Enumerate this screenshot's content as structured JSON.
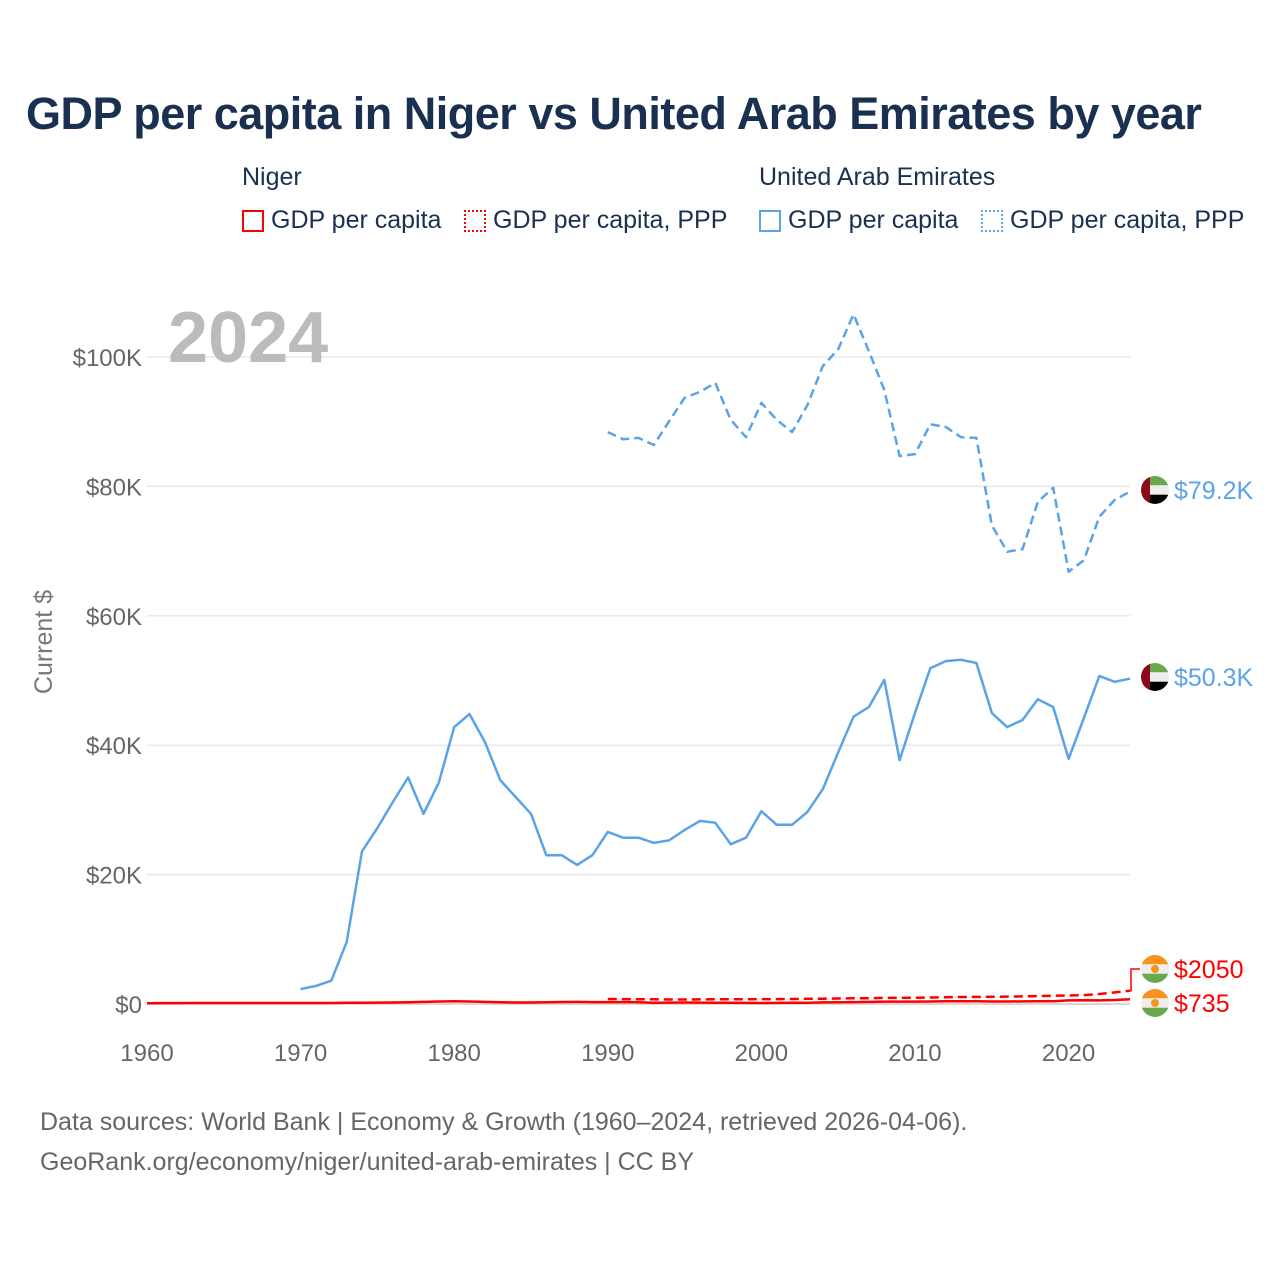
{
  "title": "GDP per capita in Niger vs United Arab Emirates by year",
  "legend": {
    "groups": [
      {
        "name": "Niger",
        "color": "#ff0000",
        "items": [
          "GDP per capita",
          "GDP per capita, PPP"
        ]
      },
      {
        "name": "United Arab Emirates",
        "color": "#5ba3e8",
        "items": [
          "GDP per capita",
          "GDP per capita, PPP"
        ]
      }
    ]
  },
  "footer": {
    "line1": "Data sources: World Bank | Economy & Growth (1960–2024, retrieved 2026-04-06).",
    "line2": "GeoRank.org/economy/niger/united-arab-emirates | CC BY"
  },
  "chart_data": {
    "type": "line",
    "title": "GDP per capita in Niger vs United Arab Emirates by year",
    "year_label": "2024",
    "ylabel": "Current $",
    "xlim": [
      1960,
      2024
    ],
    "ylim": [
      0,
      110000
    ],
    "x_ticks": [
      1960,
      1970,
      1980,
      1990,
      2000,
      2010,
      2020
    ],
    "y_ticks": [
      {
        "v": 0,
        "label": "$0"
      },
      {
        "v": 20000,
        "label": "$20K"
      },
      {
        "v": 40000,
        "label": "$40K"
      },
      {
        "v": 60000,
        "label": "$60K"
      },
      {
        "v": 80000,
        "label": "$80K"
      },
      {
        "v": 100000,
        "label": "$100K"
      }
    ],
    "series": [
      {
        "name": "United Arab Emirates GDP per capita, PPP",
        "color": "#5ba3e8",
        "dash": true,
        "start": 1990,
        "end_label": "$79.2K",
        "flag": "uae",
        "values": [
          88400,
          87300,
          87500,
          86400,
          90100,
          93700,
          94600,
          96000,
          90300,
          87600,
          92900,
          90300,
          88400,
          92600,
          98600,
          101200,
          106600,
          100900,
          94900,
          84700,
          85000,
          89600,
          89200,
          87600,
          87500,
          74000,
          69900,
          70300,
          77600,
          79800,
          66800,
          68600,
          75300,
          77900,
          79200
        ]
      },
      {
        "name": "United Arab Emirates GDP per capita",
        "color": "#5ba3e8",
        "dash": false,
        "start": 1970,
        "end_label": "$50.3K",
        "flag": "uae",
        "values": [
          2300,
          2800,
          3600,
          9600,
          23600,
          27200,
          31200,
          35000,
          29400,
          34200,
          42800,
          44800,
          40500,
          34600,
          32000,
          29400,
          23000,
          23000,
          21500,
          23000,
          26600,
          25700,
          25700,
          24900,
          25300,
          26900,
          28300,
          28000,
          24700,
          25700,
          29800,
          27700,
          27700,
          29700,
          33200,
          38900,
          44400,
          45900,
          50100,
          37700,
          45000,
          51900,
          53000,
          53200,
          52700,
          45000,
          42800,
          43900,
          47100,
          45900,
          37900,
          44200,
          50700,
          49800,
          50300
        ]
      },
      {
        "name": "Niger GDP per capita, PPP",
        "color": "#ff0000",
        "dash": true,
        "start": 1990,
        "end_label": "$2050",
        "flag": "niger",
        "values": [
          780,
          760,
          740,
          720,
          700,
          700,
          710,
          720,
          720,
          740,
          750,
          760,
          780,
          800,
          820,
          850,
          880,
          900,
          940,
          940,
          980,
          1000,
          1050,
          1080,
          1100,
          1120,
          1150,
          1180,
          1220,
          1280,
          1300,
          1380,
          1550,
          1800,
          2050
        ]
      },
      {
        "name": "Niger GDP per capita",
        "color": "#ff0000",
        "dash": false,
        "start": 1960,
        "end_label": "$735",
        "flag": "niger",
        "values": [
          130,
          135,
          145,
          150,
          155,
          160,
          160,
          160,
          155,
          150,
          150,
          150,
          160,
          180,
          200,
          220,
          230,
          270,
          330,
          380,
          420,
          380,
          330,
          270,
          230,
          230,
          280,
          310,
          320,
          290,
          300,
          290,
          280,
          200,
          210,
          230,
          220,
          200,
          200,
          170,
          160,
          170,
          180,
          200,
          240,
          260,
          290,
          330,
          370,
          370,
          370,
          380,
          420,
          430,
          440,
          390,
          380,
          400,
          430,
          440,
          560,
          590,
          560,
          620,
          735
        ]
      }
    ]
  }
}
